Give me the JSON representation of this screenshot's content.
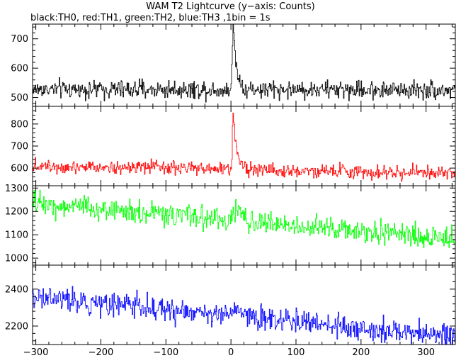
{
  "title": "WAM T2 Lightcurve (y−axis: Counts)",
  "subtitle": "black:TH0, red:TH1, green:TH2, blue:TH3 ,1bin = 1s",
  "chart_data": {
    "type": "line",
    "x": {
      "range": [
        -305,
        345
      ],
      "ticks": [
        -300,
        -200,
        -100,
        0,
        100,
        200,
        300
      ],
      "tick_labels": [
        "−300",
        "−200",
        "−100",
        "0",
        "100",
        "200",
        "300"
      ]
    },
    "binsize_s": 1,
    "grid": false,
    "panels": [
      {
        "name": "TH0",
        "color": "#000000",
        "ylim": [
          470,
          750
        ],
        "yticks": [
          500,
          600,
          700
        ],
        "baseline": [
          [
            -305,
            528
          ],
          [
            345,
            526
          ]
        ],
        "noise": 22,
        "peak": {
          "t": 3,
          "height": 230,
          "rise": 1.2,
          "decay": 5
        }
      },
      {
        "name": "TH1",
        "color": "#ff0000",
        "ylim": [
          520,
          880
        ],
        "yticks": [
          600,
          700,
          800
        ],
        "baseline": [
          [
            -305,
            612
          ],
          [
            345,
            575
          ]
        ],
        "noise": 22,
        "peak": {
          "t": 3,
          "height": 250,
          "rise": 1.2,
          "decay": 6
        }
      },
      {
        "name": "TH2",
        "color": "#00ff00",
        "ylim": [
          970,
          1310
        ],
        "yticks": [
          1000,
          1100,
          1200,
          1300
        ],
        "baseline": [
          [
            -305,
            1235
          ],
          [
            345,
            1080
          ]
        ],
        "noise": 35,
        "peak": {
          "t": 5,
          "height": 40,
          "rise": 3,
          "decay": 15
        }
      },
      {
        "name": "TH3",
        "color": "#0000ff",
        "ylim": [
          2100,
          2530
        ],
        "yticks": [
          2200,
          2400
        ],
        "baseline": [
          [
            -305,
            2360
          ],
          [
            345,
            2140
          ]
        ],
        "noise": 45,
        "peak": {
          "t": 5,
          "height": 30,
          "rise": 3,
          "decay": 15
        }
      }
    ]
  }
}
